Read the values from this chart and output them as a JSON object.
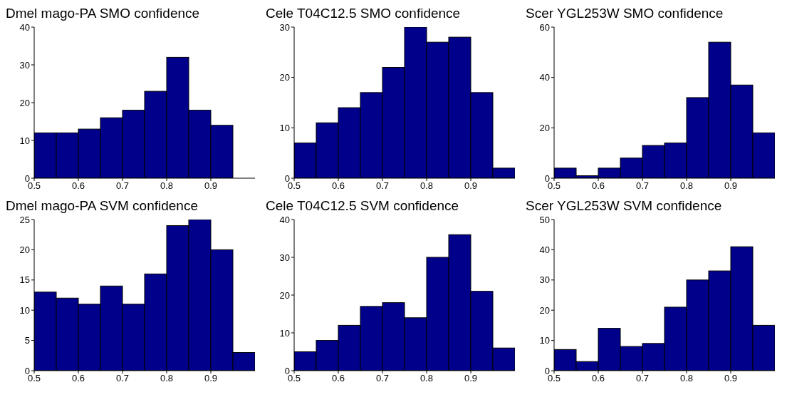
{
  "chart_data": [
    {
      "type": "histogram",
      "title": "Dmel mago-PA SMO confidence",
      "bins": [
        0.5,
        0.55,
        0.6,
        0.65,
        0.7,
        0.75,
        0.8,
        0.85,
        0.9,
        0.95,
        1.0
      ],
      "values": [
        12,
        12,
        13,
        16,
        18,
        23,
        32,
        18,
        14,
        0
      ],
      "color": "#00008b",
      "xlim": [
        0.5,
        1.0
      ],
      "xticks": [
        0.5,
        0.6,
        0.7,
        0.8,
        0.9
      ],
      "ylim": [
        0,
        40
      ],
      "yticks": [
        0,
        10,
        20,
        30,
        40
      ]
    },
    {
      "type": "histogram",
      "title": "Cele T04C12.5 SMO confidence",
      "bins": [
        0.5,
        0.55,
        0.6,
        0.65,
        0.7,
        0.75,
        0.8,
        0.85,
        0.9,
        0.95,
        1.0
      ],
      "values": [
        7,
        11,
        14,
        17,
        22,
        30,
        27,
        28,
        17,
        2
      ],
      "color": "#00008b",
      "xlim": [
        0.5,
        1.0
      ],
      "xticks": [
        0.5,
        0.6,
        0.7,
        0.8,
        0.9
      ],
      "ylim": [
        0,
        30
      ],
      "yticks": [
        0,
        10,
        20,
        30
      ]
    },
    {
      "type": "histogram",
      "title": "Scer YGL253W SMO confidence",
      "bins": [
        0.5,
        0.55,
        0.6,
        0.65,
        0.7,
        0.75,
        0.8,
        0.85,
        0.9,
        0.95,
        1.0
      ],
      "values": [
        4,
        1,
        4,
        8,
        13,
        14,
        32,
        54,
        37,
        18
      ],
      "color": "#00008b",
      "xlim": [
        0.5,
        1.0
      ],
      "xticks": [
        0.5,
        0.6,
        0.7,
        0.8,
        0.9
      ],
      "ylim": [
        0,
        60
      ],
      "yticks": [
        0,
        20,
        40,
        60
      ]
    },
    {
      "type": "histogram",
      "title": "Dmel mago-PA SVM confidence",
      "bins": [
        0.5,
        0.55,
        0.6,
        0.65,
        0.7,
        0.75,
        0.8,
        0.85,
        0.9,
        0.95,
        1.0
      ],
      "values": [
        13,
        12,
        11,
        14,
        11,
        16,
        24,
        25,
        20,
        3
      ],
      "color": "#00008b",
      "xlim": [
        0.5,
        1.0
      ],
      "xticks": [
        0.5,
        0.6,
        0.7,
        0.8,
        0.9
      ],
      "ylim": [
        0,
        25
      ],
      "yticks": [
        0,
        5,
        10,
        15,
        20,
        25
      ]
    },
    {
      "type": "histogram",
      "title": "Cele T04C12.5 SVM confidence",
      "bins": [
        0.5,
        0.55,
        0.6,
        0.65,
        0.7,
        0.75,
        0.8,
        0.85,
        0.9,
        0.95,
        1.0
      ],
      "values": [
        5,
        8,
        12,
        17,
        18,
        14,
        30,
        36,
        21,
        6
      ],
      "color": "#00008b",
      "xlim": [
        0.5,
        1.0
      ],
      "xticks": [
        0.5,
        0.6,
        0.7,
        0.8,
        0.9
      ],
      "ylim": [
        0,
        40
      ],
      "yticks": [
        0,
        10,
        20,
        30,
        40
      ]
    },
    {
      "type": "histogram",
      "title": "Scer YGL253W SVM confidence",
      "bins": [
        0.5,
        0.55,
        0.6,
        0.65,
        0.7,
        0.75,
        0.8,
        0.85,
        0.9,
        0.95,
        1.0
      ],
      "values": [
        7,
        3,
        14,
        8,
        9,
        21,
        30,
        33,
        41,
        15
      ],
      "color": "#00008b",
      "xlim": [
        0.5,
        1.0
      ],
      "xticks": [
        0.5,
        0.6,
        0.7,
        0.8,
        0.9
      ],
      "ylim": [
        0,
        50
      ],
      "yticks": [
        0,
        10,
        20,
        30,
        40,
        50
      ]
    }
  ]
}
